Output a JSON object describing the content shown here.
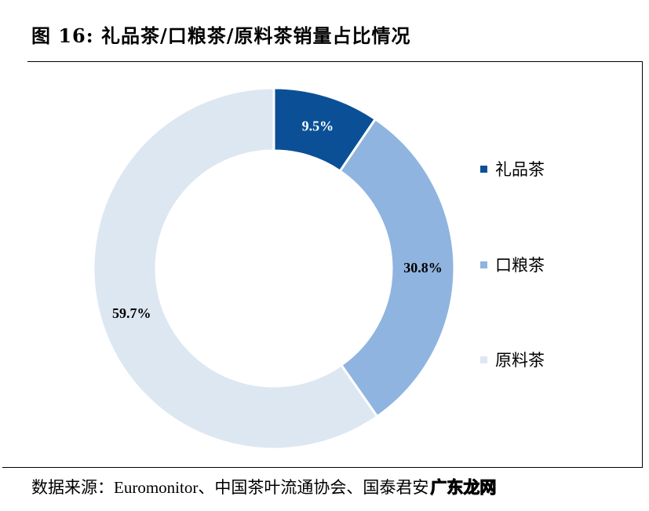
{
  "title": "图 16:  礼品茶/口粮茶/原料茶销量占比情况",
  "chart_data": {
    "type": "pie",
    "donut": true,
    "title": "图 16:  礼品茶/口粮茶/原料茶销量占比情况",
    "categories": [
      "礼品茶",
      "口粮茶",
      "原料茶"
    ],
    "values": [
      9.5,
      30.8,
      59.7
    ],
    "labels": [
      "9.5%",
      "30.8%",
      "59.7%"
    ],
    "colors": [
      "#0b5096",
      "#8fb4e0",
      "#dde7f2"
    ],
    "label_colors": [
      "#ffffff",
      "#000000",
      "#000000"
    ],
    "legend_position": "right",
    "start": "top, clockwise"
  },
  "source": "数据来源：Euromonitor、中国茶叶流通协会、国泰君安",
  "watermark": "广东龙网"
}
